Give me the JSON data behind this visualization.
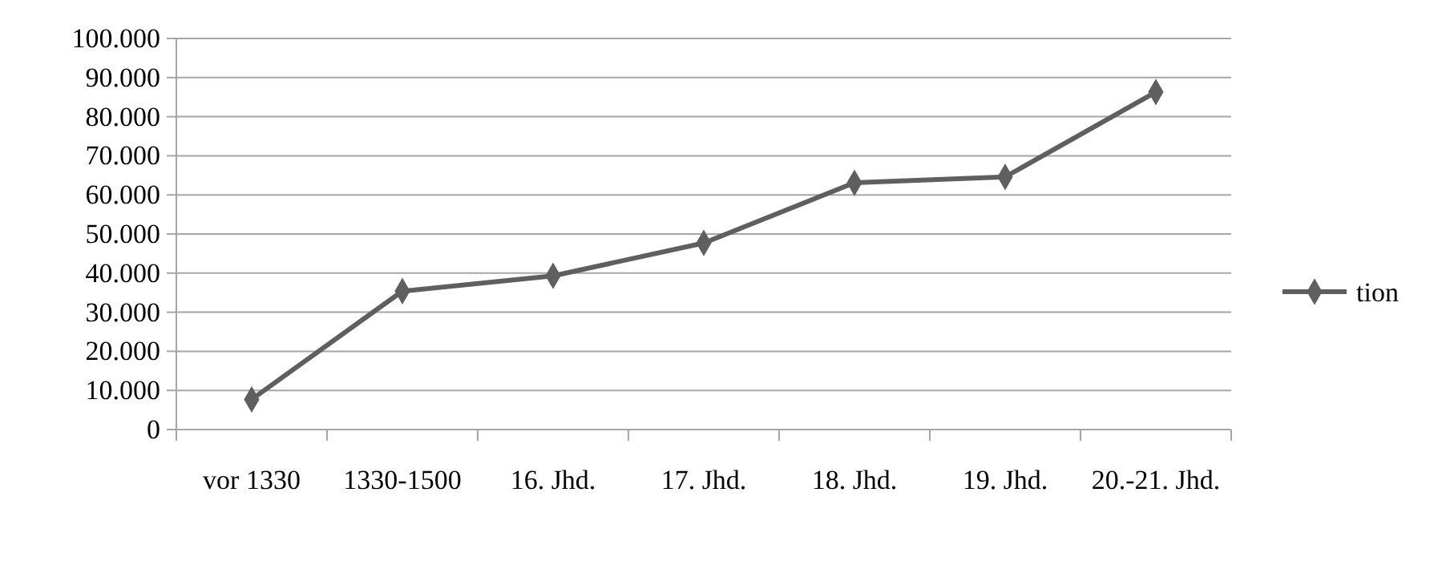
{
  "chart_data": {
    "type": "line",
    "categories": [
      "vor 1330",
      "1330-1500",
      "16. Jhd.",
      "17. Jhd.",
      "18. Jhd.",
      "19. Jhd.",
      "20.-21. Jhd."
    ],
    "series": [
      {
        "name": "tion",
        "color": "#5f5f5f",
        "values": [
          7700,
          35400,
          39300,
          47700,
          63100,
          64600,
          86300
        ]
      }
    ],
    "ylim": [
      0,
      100000
    ],
    "yticks": [
      {
        "value": 0,
        "label": "0"
      },
      {
        "value": 10000,
        "label": "10.000"
      },
      {
        "value": 20000,
        "label": "20.000"
      },
      {
        "value": 30000,
        "label": "30.000"
      },
      {
        "value": 40000,
        "label": "40.000"
      },
      {
        "value": 50000,
        "label": "50.000"
      },
      {
        "value": 60000,
        "label": "60.000"
      },
      {
        "value": 70000,
        "label": "70.000"
      },
      {
        "value": 80000,
        "label": "80.000"
      },
      {
        "value": 90000,
        "label": "90.000"
      },
      {
        "value": 100000,
        "label": "100.000"
      }
    ],
    "grid": "y",
    "legend": "right",
    "marker": "diamond",
    "line_style": "solid"
  }
}
